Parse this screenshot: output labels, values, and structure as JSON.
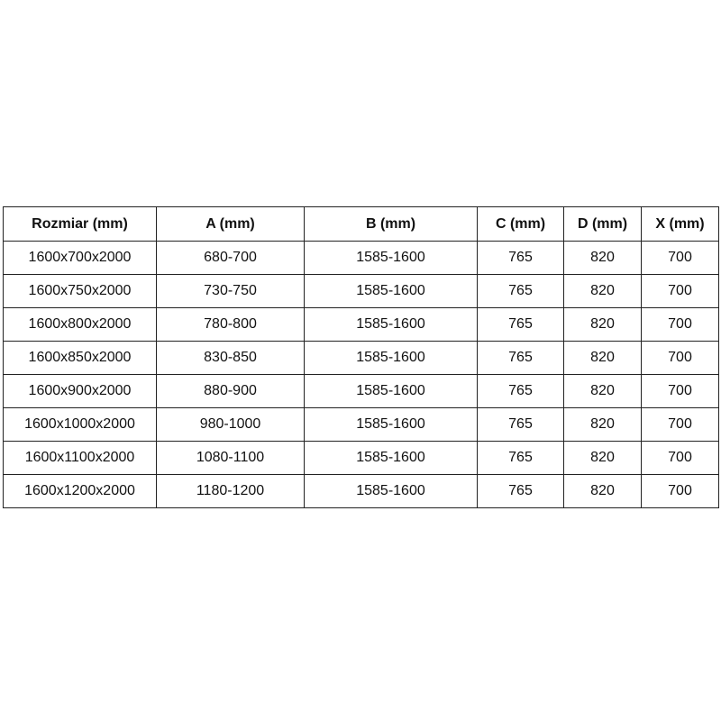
{
  "table": {
    "headers": [
      "Rozmiar (mm)",
      "A (mm)",
      "B (mm)",
      "C (mm)",
      "D (mm)",
      "X (mm)"
    ],
    "rows": [
      [
        "1600x700x2000",
        "680-700",
        "1585-1600",
        "765",
        "820",
        "700"
      ],
      [
        "1600x750x2000",
        "730-750",
        "1585-1600",
        "765",
        "820",
        "700"
      ],
      [
        "1600x800x2000",
        "780-800",
        "1585-1600",
        "765",
        "820",
        "700"
      ],
      [
        "1600x850x2000",
        "830-850",
        "1585-1600",
        "765",
        "820",
        "700"
      ],
      [
        "1600x900x2000",
        "880-900",
        "1585-1600",
        "765",
        "820",
        "700"
      ],
      [
        "1600x1000x2000",
        "980-1000",
        "1585-1600",
        "765",
        "820",
        "700"
      ],
      [
        "1600x1100x2000",
        "1080-1100",
        "1585-1600",
        "765",
        "820",
        "700"
      ],
      [
        "1600x1200x2000",
        "1180-1200",
        "1585-1600",
        "765",
        "820",
        "700"
      ]
    ]
  }
}
